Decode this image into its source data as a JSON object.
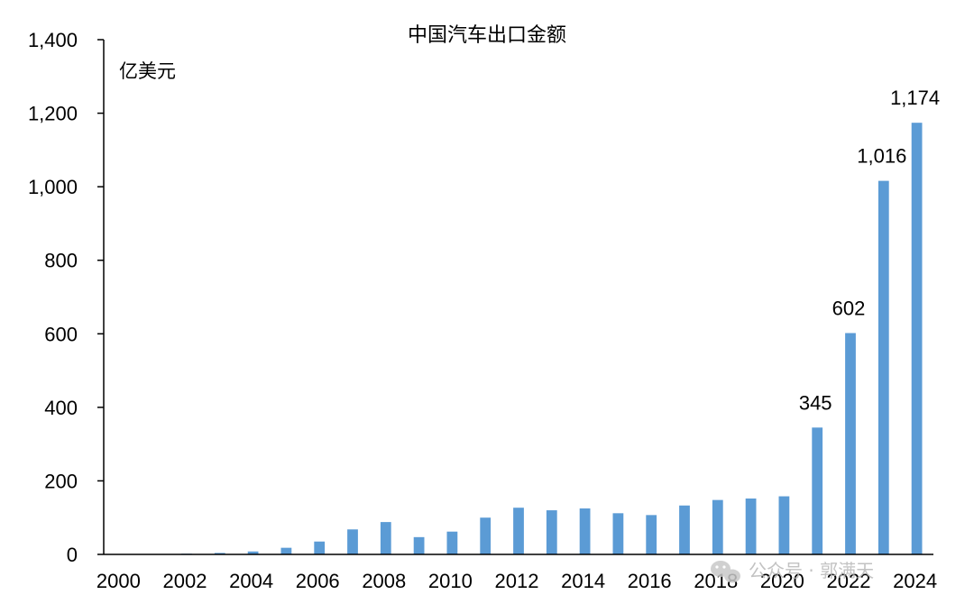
{
  "chart_data": {
    "type": "bar",
    "title": "中国汽车出口金额",
    "unit_label": "亿美元",
    "xlabel": "",
    "ylabel": "",
    "categories": [
      "2000",
      "2001",
      "2002",
      "2003",
      "2004",
      "2005",
      "2006",
      "2007",
      "2008",
      "2009",
      "2010",
      "2011",
      "2012",
      "2013",
      "2014",
      "2015",
      "2016",
      "2017",
      "2018",
      "2019",
      "2020",
      "2021",
      "2022",
      "2023",
      "2024"
    ],
    "x_tick_labels": [
      "2000",
      "2002",
      "2004",
      "2006",
      "2008",
      "2010",
      "2012",
      "2014",
      "2016",
      "2018",
      "2020",
      "2022",
      "2024"
    ],
    "values": [
      1,
      1,
      2,
      4,
      8,
      18,
      35,
      68,
      88,
      47,
      62,
      100,
      127,
      120,
      125,
      112,
      107,
      133,
      148,
      152,
      158,
      345,
      602,
      1016,
      1174
    ],
    "data_labels": [
      {
        "category": "2021",
        "text": "345"
      },
      {
        "category": "2022",
        "text": "602"
      },
      {
        "category": "2023",
        "text": "1,016"
      },
      {
        "category": "2024",
        "text": "1,174"
      }
    ],
    "ylim": [
      0,
      1400
    ],
    "y_ticks": [
      0,
      200,
      400,
      600,
      800,
      1000,
      1200,
      1400
    ],
    "y_tick_labels": [
      "0",
      "200",
      "400",
      "600",
      "800",
      "1,000",
      "1,200",
      "1,400"
    ],
    "bar_color": "#5b9bd5",
    "grid": false,
    "legend": "none"
  },
  "watermark": {
    "icon": "wechat-icon",
    "text": "公众号 · 郭满天"
  }
}
